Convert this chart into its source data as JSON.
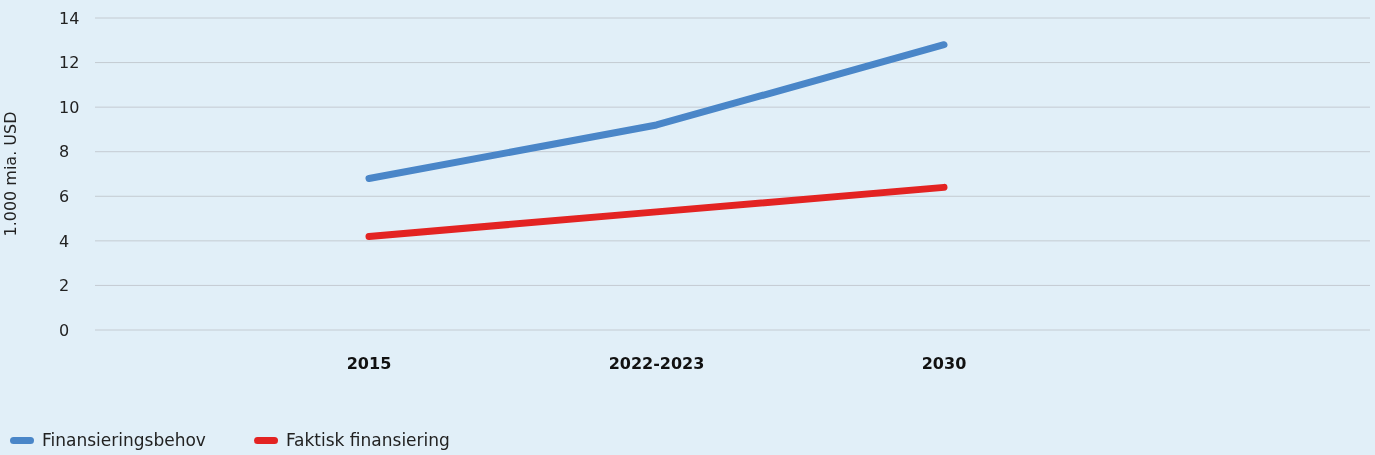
{
  "chart_data": {
    "type": "line",
    "ylabel": "1.000 mia. USD",
    "categories": [
      "2015",
      "2022-2023",
      "2030"
    ],
    "series": [
      {
        "name": "Finansieringsbehov",
        "color": "#4a86c8",
        "values": [
          6.8,
          9.2,
          12.8
        ]
      },
      {
        "name": "Faktisk finansiering",
        "color": "#e32322",
        "values": [
          4.2,
          5.3,
          6.4
        ]
      }
    ],
    "ylim": [
      0,
      14
    ],
    "yticks": [
      0,
      2,
      4,
      6,
      8,
      10,
      12,
      14
    ],
    "grid": "y",
    "legend": "bottom left",
    "marker": "none",
    "line_style": "solid"
  }
}
